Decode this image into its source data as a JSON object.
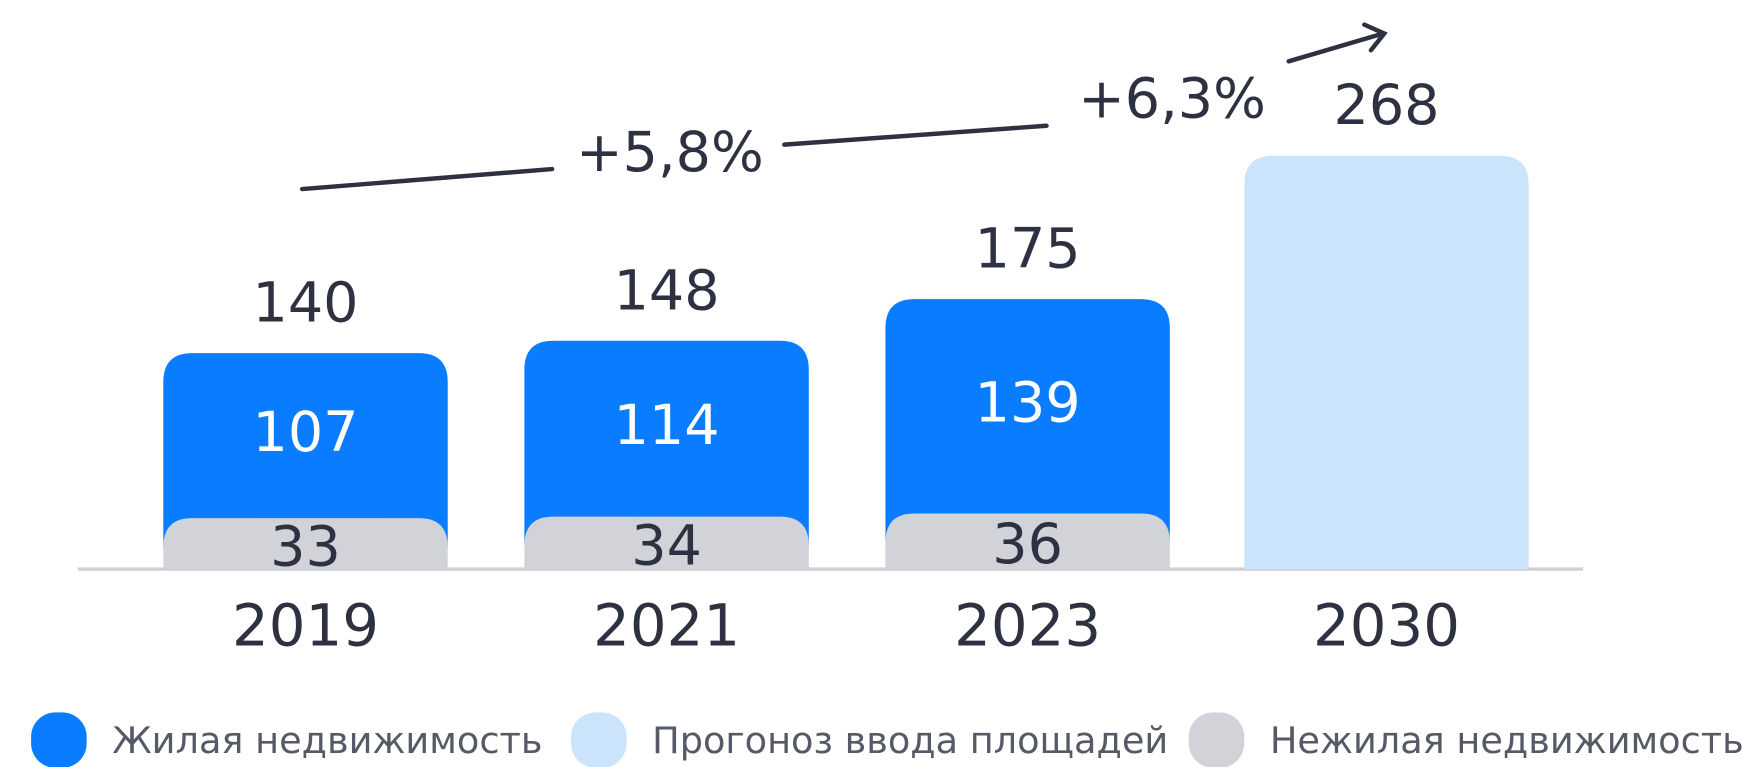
{
  "chart_data": {
    "type": "stacked-bar",
    "categories": [
      "2019",
      "2021",
      "2023",
      "2030"
    ],
    "series": [
      {
        "name": "Жилая недвижимость",
        "color": "#0a7cff",
        "values": [
          107,
          114,
          139,
          null
        ]
      },
      {
        "name": "Прогоноз ввода площадей",
        "color": "#cce4fb",
        "values": [
          null,
          null,
          null,
          268
        ]
      },
      {
        "name": "Нежилая недвижимость",
        "color": "#d1d3d8",
        "values": [
          33,
          34,
          36,
          null
        ]
      }
    ],
    "totals": [
      140,
      148,
      175,
      null
    ],
    "annotations": [
      "+5,8%",
      "+6,3%"
    ]
  }
}
